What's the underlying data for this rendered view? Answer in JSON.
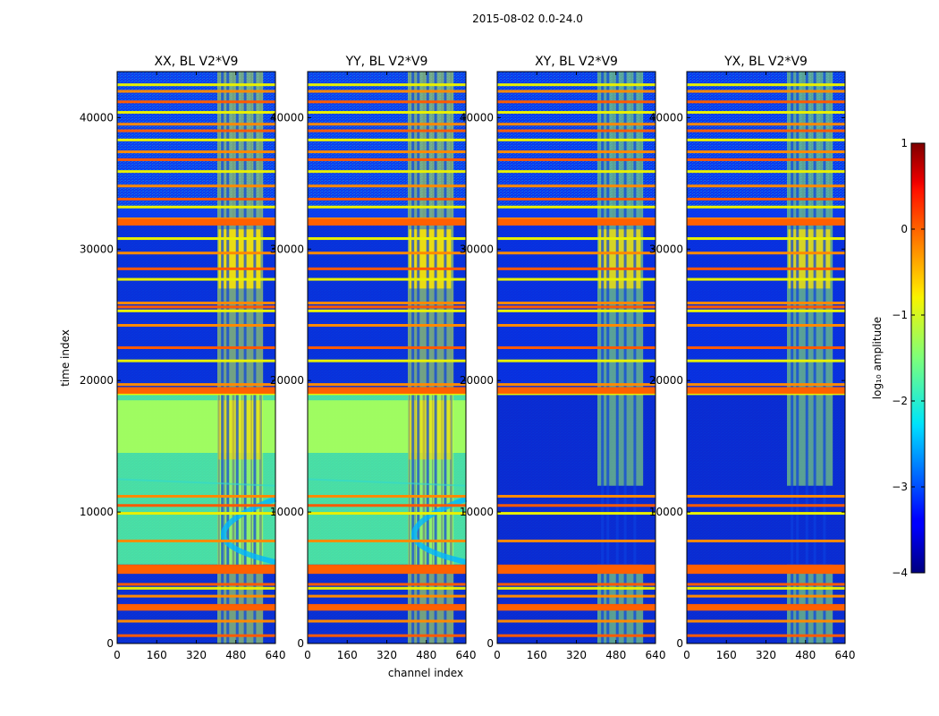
{
  "chart_data": {
    "type": "heatmap",
    "suptitle": "2015-08-02 0.0-24.0",
    "xlabel": "channel index",
    "ylabel": "time index",
    "xlim": [
      0,
      640
    ],
    "ylim": [
      0,
      43500
    ],
    "xticks": [
      0,
      160,
      320,
      480,
      640
    ],
    "yticks": [
      0,
      10000,
      20000,
      30000,
      40000
    ],
    "panels": [
      {
        "title": "XX, BL V2*V9",
        "pol": "parallel",
        "xlabel_shown": false,
        "ylabel_shown": true
      },
      {
        "title": "YY, BL V2*V9",
        "pol": "parallel",
        "xlabel_shown": true,
        "ylabel_shown": false
      },
      {
        "title": "XY, BL V2*V9",
        "pol": "cross",
        "xlabel_shown": false,
        "ylabel_shown": false
      },
      {
        "title": "YX, BL V2*V9",
        "pol": "cross",
        "xlabel_shown": false,
        "ylabel_shown": false
      }
    ],
    "colorbar": {
      "label": "log₁₀ amplitude",
      "vmin": -4,
      "vmax": 1,
      "ticks": [
        "1",
        "0",
        "−1",
        "−2",
        "−3",
        "−4"
      ],
      "tick_values": [
        1,
        0,
        -1,
        -2,
        -3,
        -4
      ],
      "colormap": "jet"
    },
    "rfi_bands_channels": [
      [
        407,
        415
      ],
      [
        432,
        437
      ],
      [
        465,
        475
      ],
      [
        503,
        507
      ],
      [
        540,
        546
      ],
      [
        575,
        585
      ]
    ],
    "flagged_rows_time": [
      600,
      1700,
      2700,
      2900,
      3600,
      4200,
      4500,
      5500,
      5700,
      5900,
      7800,
      9900,
      10500,
      11200,
      19000,
      19300,
      19700,
      21500,
      22500,
      24200,
      25300,
      25600,
      25900,
      27700,
      28500,
      29700,
      30800,
      31900,
      32300,
      33200,
      33800,
      34800,
      35900,
      36800,
      37400,
      38300,
      39000,
      39500,
      40400,
      41200,
      42000,
      42500
    ],
    "colors": {
      "jet_low": "#00007f",
      "jet_high": "#7f0000",
      "background": "#ffffff"
    }
  }
}
